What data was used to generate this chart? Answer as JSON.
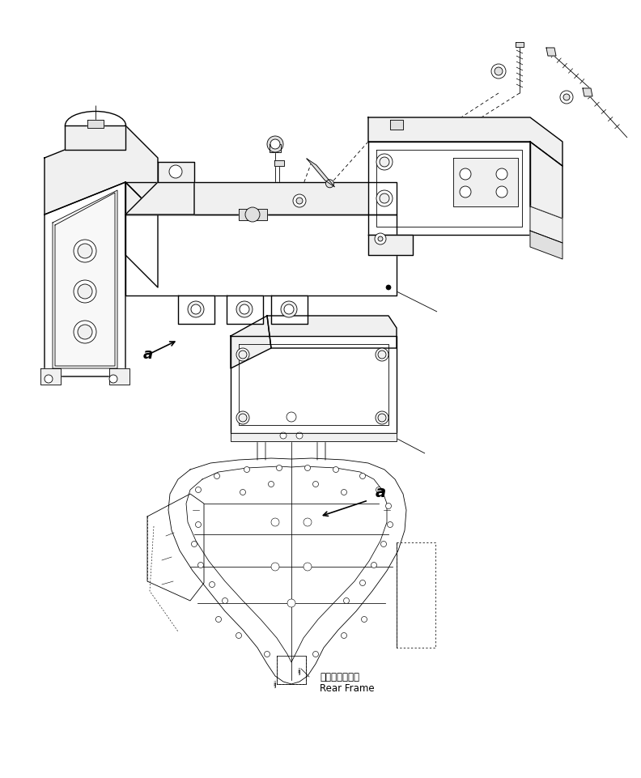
{
  "bg_color": "#ffffff",
  "line_color": "#000000",
  "label_a_text": "a",
  "rear_frame_jp": "リヤーフレーム",
  "rear_frame_en": "Rear Frame",
  "fig_width": 7.92,
  "fig_height": 9.61,
  "dpi": 100
}
